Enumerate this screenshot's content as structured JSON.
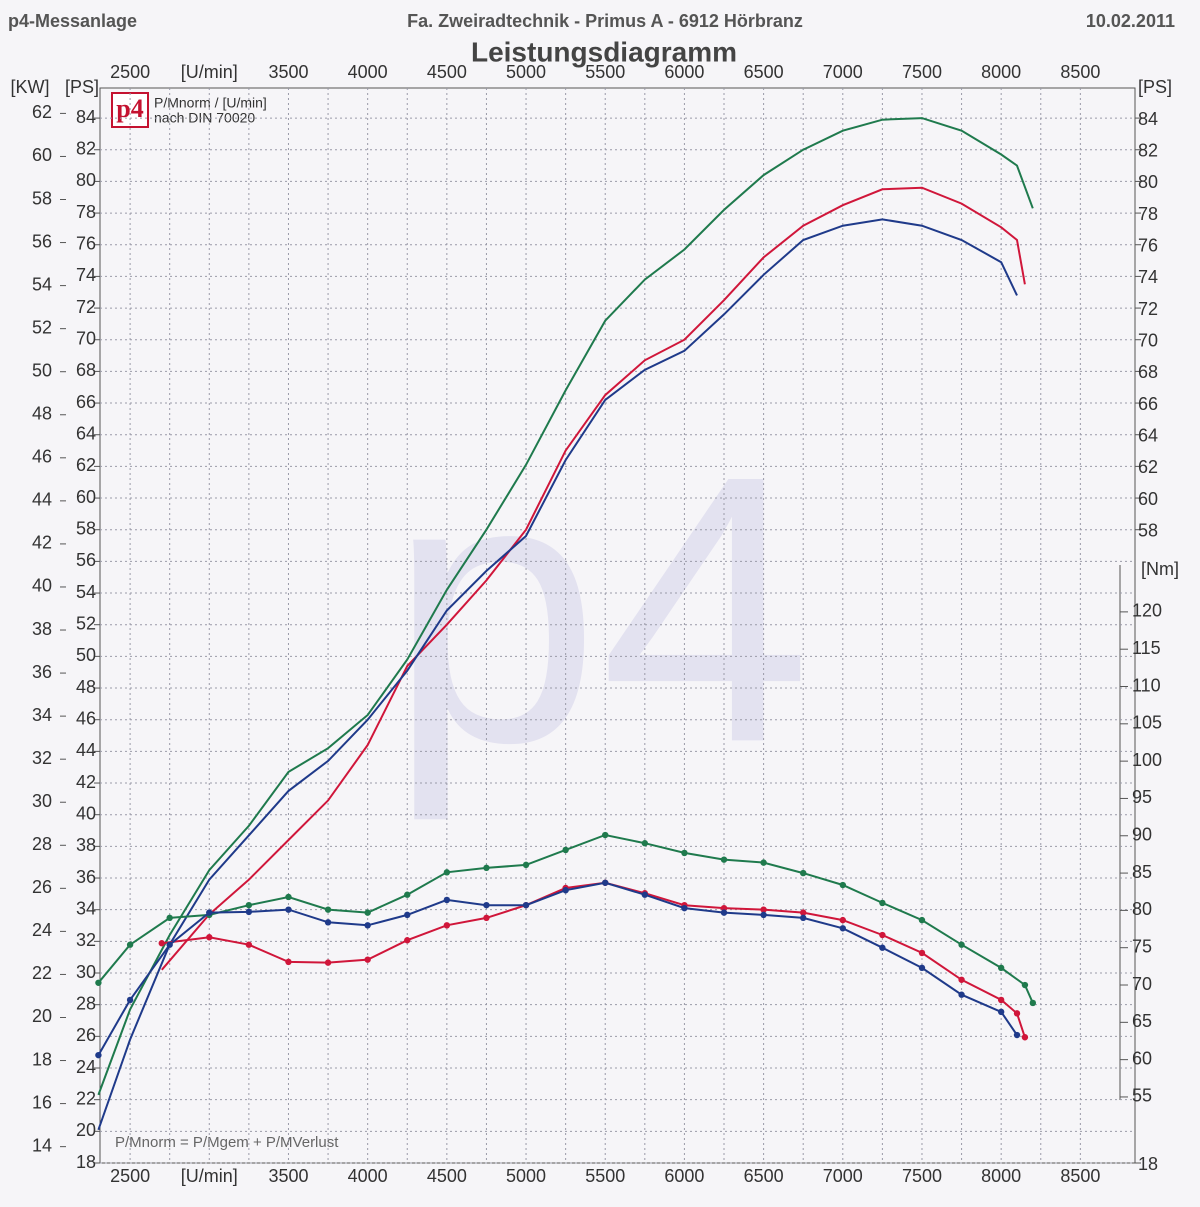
{
  "header": {
    "left": "p4-Messanlage",
    "center": "Fa. Zweiradtechnik - Primus   A - 6912 Hörbranz",
    "right": "10.02.2011"
  },
  "chart_data": {
    "type": "line",
    "title": "Leistungsdiagramm",
    "logo": "p4",
    "watermark": "p4",
    "legend_lines": [
      "P/Mnorm / [U/min]",
      "nach DIN 70020"
    ],
    "footnote": "P/Mnorm = P/Mgem + P/MVerlust",
    "y_unit_left": "[KW]",
    "y_unit": "[PS]",
    "y_unit_right": "[PS]",
    "y3_unit": "[Nm]",
    "grid": true,
    "xlim": [
      2310,
      8845
    ],
    "xticks": [
      2500,
      {
        "value": 3000,
        "label": "[U/min]"
      },
      3500,
      4000,
      4500,
      5000,
      5500,
      6000,
      6500,
      7000,
      7500,
      8000,
      8500
    ],
    "ylim": [
      18,
      85.9
    ],
    "yticks": [
      18,
      20,
      22,
      24,
      26,
      28,
      30,
      32,
      34,
      36,
      38,
      40,
      42,
      44,
      46,
      48,
      50,
      52,
      54,
      56,
      58,
      60,
      62,
      64,
      66,
      68,
      70,
      72,
      74,
      76,
      78,
      80,
      82,
      84
    ],
    "yticks_right": [
      18,
      58,
      60,
      62,
      64,
      66,
      68,
      70,
      72,
      74,
      76,
      78,
      80,
      82,
      84
    ],
    "y2lim": [
      13.24,
      63.18
    ],
    "y2ticks": [
      14,
      16,
      18,
      20,
      22,
      24,
      26,
      28,
      30,
      32,
      34,
      36,
      38,
      40,
      42,
      44,
      46,
      48,
      50,
      52,
      54,
      56,
      58,
      60,
      62
    ],
    "y3lim": [
      46.15,
      190.2
    ],
    "y3ticks": [
      55,
      60,
      65,
      70,
      75,
      80,
      85,
      90,
      95,
      100,
      105,
      110,
      115,
      120
    ],
    "series": [
      {
        "color": "#1f7a4d",
        "axis": "y",
        "markers": false,
        "x": [
          2300,
          2500,
          2750,
          3000,
          3250,
          3500,
          3750,
          4000,
          4250,
          4500,
          4750,
          5000,
          5250,
          5500,
          5750,
          6000,
          6250,
          6500,
          6750,
          7000,
          7250,
          7500,
          7750,
          8000,
          8100,
          8200
        ],
        "values": [
          22.3,
          27.7,
          32.4,
          36.5,
          39.3,
          42.7,
          44.2,
          46.3,
          49.8,
          54.2,
          58.0,
          62.1,
          66.8,
          71.2,
          73.8,
          75.7,
          78.2,
          80.4,
          82.0,
          83.2,
          83.9,
          84.0,
          83.2,
          81.7,
          81.0,
          78.3
        ]
      },
      {
        "color": "#d0163a",
        "axis": "y",
        "markers": false,
        "x": [
          2700,
          3000,
          3250,
          3500,
          3750,
          4000,
          4250,
          4500,
          4750,
          5000,
          5250,
          5500,
          5750,
          6000,
          6250,
          6500,
          6750,
          7000,
          7250,
          7500,
          7750,
          8000,
          8100,
          8150
        ],
        "values": [
          30.2,
          33.7,
          35.9,
          38.4,
          40.9,
          44.4,
          49.4,
          52.0,
          54.8,
          58.0,
          63.0,
          66.5,
          68.7,
          70.0,
          72.5,
          75.2,
          77.2,
          78.5,
          79.5,
          79.6,
          78.6,
          77.1,
          76.3,
          73.5
        ]
      },
      {
        "color": "#1f3a8a",
        "axis": "y",
        "markers": false,
        "x": [
          2300,
          2500,
          2750,
          3000,
          3250,
          3500,
          3750,
          4000,
          4250,
          4500,
          4750,
          5000,
          5250,
          5500,
          5750,
          6000,
          6250,
          6500,
          6750,
          7000,
          7250,
          7500,
          7750,
          8000,
          8100
        ],
        "values": [
          20.1,
          25.8,
          31.8,
          35.9,
          38.7,
          41.5,
          43.4,
          46.0,
          49.1,
          52.9,
          55.4,
          57.6,
          62.4,
          66.2,
          68.1,
          69.3,
          71.6,
          74.1,
          76.3,
          77.2,
          77.6,
          77.2,
          76.3,
          74.9,
          72.8
        ]
      },
      {
        "color": "#1f7a4d",
        "axis": "y3",
        "markers": true,
        "x": [
          2300,
          2500,
          2750,
          3000,
          3250,
          3500,
          3750,
          4000,
          4250,
          4500,
          4750,
          5000,
          5250,
          5500,
          5750,
          6000,
          6250,
          6500,
          6750,
          7000,
          7250,
          7500,
          7750,
          8000,
          8150,
          8200
        ],
        "values": [
          70.3,
          75.4,
          79.0,
          79.4,
          80.7,
          81.8,
          80.1,
          79.7,
          82.1,
          85.1,
          85.7,
          86.1,
          88.1,
          90.1,
          89.0,
          87.7,
          86.8,
          86.4,
          85.0,
          83.4,
          81.0,
          78.7,
          75.4,
          72.3,
          70.0,
          67.6
        ]
      },
      {
        "color": "#d0163a",
        "axis": "y3",
        "markers": true,
        "x": [
          2700,
          3000,
          3250,
          3500,
          3750,
          4000,
          4250,
          4500,
          4750,
          5000,
          5250,
          5500,
          5750,
          6000,
          6250,
          6500,
          6750,
          7000,
          7250,
          7500,
          7750,
          8000,
          8100,
          8150
        ],
        "values": [
          75.6,
          76.4,
          75.4,
          73.1,
          73.0,
          73.4,
          76.0,
          78.0,
          79.0,
          80.7,
          83.0,
          83.7,
          82.3,
          80.7,
          80.3,
          80.1,
          79.7,
          78.7,
          76.7,
          74.3,
          70.7,
          68.0,
          66.2,
          63.0
        ]
      },
      {
        "color": "#1f3a8a",
        "axis": "y3",
        "markers": true,
        "x": [
          2300,
          2500,
          2750,
          3000,
          3250,
          3500,
          3750,
          4000,
          4250,
          4500,
          4750,
          5000,
          5250,
          5500,
          5750,
          6000,
          6250,
          6500,
          6750,
          7000,
          7250,
          7500,
          7750,
          8000,
          8100
        ],
        "values": [
          60.6,
          68.0,
          75.4,
          79.7,
          79.8,
          80.1,
          78.4,
          78.0,
          79.4,
          81.4,
          80.7,
          80.7,
          82.7,
          83.7,
          82.1,
          80.3,
          79.7,
          79.4,
          79.0,
          77.6,
          75.0,
          72.3,
          68.7,
          66.4,
          63.3
        ]
      }
    ]
  }
}
